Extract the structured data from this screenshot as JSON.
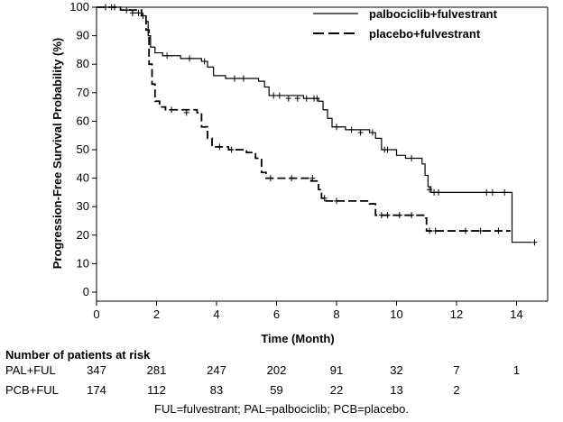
{
  "chart_data": {
    "type": "line",
    "title": "",
    "xlabel": "Time (Month)",
    "ylabel": "Progression-Free Survival Probability (%)",
    "xlim": [
      0,
      15
    ],
    "ylim": [
      0,
      100
    ],
    "xticks": [
      0,
      2,
      4,
      6,
      8,
      10,
      12,
      14
    ],
    "yticks": [
      0,
      10,
      20,
      30,
      40,
      50,
      60,
      70,
      80,
      90,
      100
    ],
    "grid": false,
    "legend_position": "top-right",
    "series": [
      {
        "name": "palbociclib+fulvestrant",
        "style": "solid",
        "color": "#000000",
        "steps": [
          [
            0,
            100
          ],
          [
            0.4,
            100
          ],
          [
            0.8,
            99
          ],
          [
            1.2,
            98
          ],
          [
            1.5,
            97
          ],
          [
            1.65,
            95
          ],
          [
            1.72,
            90
          ],
          [
            1.8,
            86
          ],
          [
            1.95,
            84
          ],
          [
            2.2,
            83
          ],
          [
            2.8,
            82
          ],
          [
            3.5,
            81
          ],
          [
            3.7,
            79
          ],
          [
            3.9,
            76
          ],
          [
            4.3,
            75
          ],
          [
            5.4,
            74
          ],
          [
            5.6,
            72
          ],
          [
            5.75,
            69
          ],
          [
            6.9,
            68
          ],
          [
            7.4,
            67
          ],
          [
            7.55,
            64
          ],
          [
            7.7,
            61
          ],
          [
            7.85,
            58
          ],
          [
            8.3,
            57
          ],
          [
            9.1,
            56
          ],
          [
            9.3,
            54
          ],
          [
            9.5,
            50
          ],
          [
            10.0,
            48
          ],
          [
            10.3,
            47
          ],
          [
            10.85,
            45
          ],
          [
            10.95,
            41
          ],
          [
            11.05,
            37
          ],
          [
            11.15,
            35
          ],
          [
            13.85,
            35
          ],
          [
            13.85,
            17.5
          ],
          [
            14.5,
            17.5
          ]
        ],
        "censors": [
          [
            0.3,
            100
          ],
          [
            0.6,
            100
          ],
          [
            1.0,
            99
          ],
          [
            1.4,
            98
          ],
          [
            1.55,
            97
          ],
          [
            2.35,
            83
          ],
          [
            3.1,
            82
          ],
          [
            3.6,
            81
          ],
          [
            4.6,
            75
          ],
          [
            4.9,
            75
          ],
          [
            5.9,
            69
          ],
          [
            6.1,
            69
          ],
          [
            6.4,
            68
          ],
          [
            6.7,
            68
          ],
          [
            7.0,
            68
          ],
          [
            7.25,
            68
          ],
          [
            7.35,
            68
          ],
          [
            8.0,
            58
          ],
          [
            8.5,
            57
          ],
          [
            8.8,
            56
          ],
          [
            9.2,
            56
          ],
          [
            9.6,
            50
          ],
          [
            9.7,
            50
          ],
          [
            10.5,
            47
          ],
          [
            11.1,
            36
          ],
          [
            11.25,
            35
          ],
          [
            11.4,
            35
          ],
          [
            13.0,
            35
          ],
          [
            13.2,
            35
          ],
          [
            13.6,
            35
          ],
          [
            14.6,
            17.5
          ]
        ]
      },
      {
        "name": "placebo+fulvestrant",
        "style": "dashed",
        "color": "#000000",
        "steps": [
          [
            0,
            100
          ],
          [
            0.8,
            99
          ],
          [
            1.5,
            97
          ],
          [
            1.65,
            92
          ],
          [
            1.75,
            80
          ],
          [
            1.85,
            73
          ],
          [
            1.95,
            67
          ],
          [
            2.1,
            65
          ],
          [
            2.3,
            64
          ],
          [
            3.35,
            63
          ],
          [
            3.5,
            58
          ],
          [
            3.7,
            54
          ],
          [
            3.85,
            51
          ],
          [
            4.4,
            50
          ],
          [
            5.0,
            49
          ],
          [
            5.3,
            47
          ],
          [
            5.5,
            42
          ],
          [
            5.65,
            40
          ],
          [
            6.9,
            40
          ],
          [
            7.15,
            39
          ],
          [
            7.4,
            36
          ],
          [
            7.5,
            33
          ],
          [
            7.65,
            32
          ],
          [
            8.45,
            32
          ],
          [
            9.1,
            31
          ],
          [
            9.3,
            27
          ],
          [
            10.8,
            27
          ],
          [
            10.9,
            26
          ],
          [
            11.0,
            21.5
          ],
          [
            13.8,
            21.5
          ]
        ],
        "censors": [
          [
            0.5,
            100
          ],
          [
            1.2,
            98
          ],
          [
            2.5,
            64
          ],
          [
            3.0,
            63
          ],
          [
            4.1,
            51
          ],
          [
            4.5,
            50
          ],
          [
            5.8,
            40
          ],
          [
            6.5,
            40
          ],
          [
            7.2,
            40
          ],
          [
            7.6,
            33
          ],
          [
            8.0,
            32
          ],
          [
            9.5,
            27
          ],
          [
            9.7,
            27
          ],
          [
            10.1,
            27
          ],
          [
            10.5,
            27
          ],
          [
            11.1,
            21.5
          ],
          [
            11.3,
            21.5
          ],
          [
            12.3,
            21.5
          ],
          [
            12.8,
            21.5
          ],
          [
            13.4,
            21.5
          ]
        ]
      }
    ]
  },
  "risk_table": {
    "title": "Number of patients at risk",
    "times": [
      0,
      2,
      4,
      6,
      8,
      10,
      12,
      14
    ],
    "rows": [
      {
        "label": "PAL+FUL",
        "counts": [
          "347",
          "281",
          "247",
          "202",
          "91",
          "32",
          "7",
          "1"
        ]
      },
      {
        "label": "PCB+FUL",
        "counts": [
          "174",
          "112",
          "83",
          "59",
          "22",
          "13",
          "2",
          ""
        ]
      }
    ]
  },
  "footnote": "FUL=fulvestrant; PAL=palbociclib; PCB=placebo."
}
